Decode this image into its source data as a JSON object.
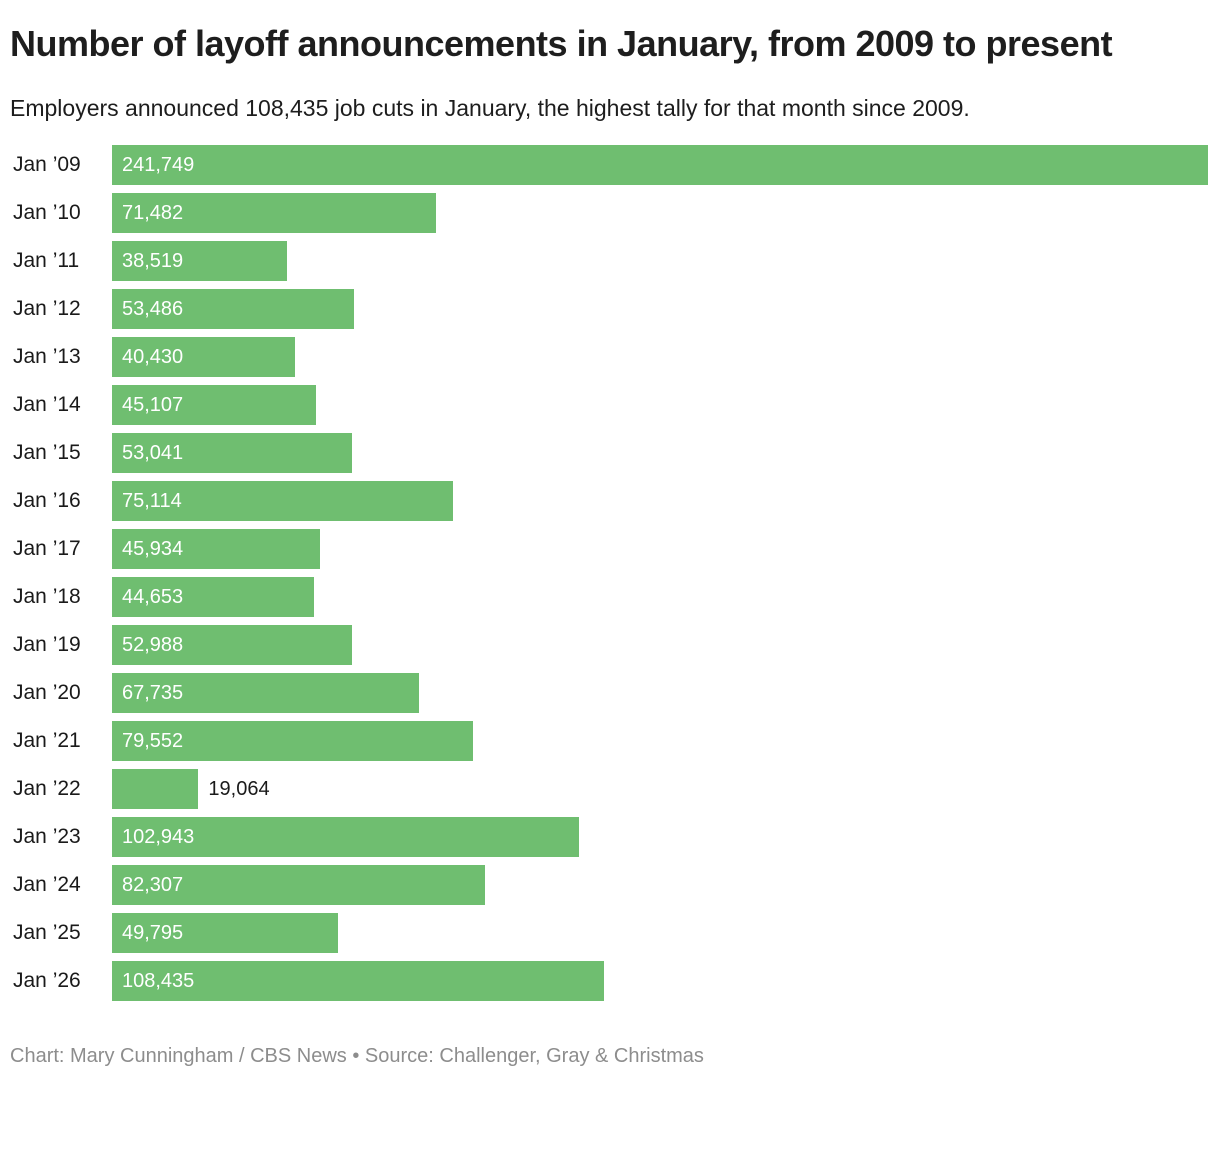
{
  "header": {
    "title": "Number of layoff announcements in January, from 2009 to present",
    "subtitle": "Employers announced 108,435 job cuts in January, the highest tally for that month since 2009."
  },
  "chart_data": {
    "type": "bar",
    "orientation": "horizontal",
    "title": "Number of layoff announcements in January, from 2009 to present",
    "subtitle": "Employers announced 108,435 job cuts in January, the highest tally for that month since 2009.",
    "categories": [
      "Jan ’09",
      "Jan ’10",
      "Jan ’11",
      "Jan ’12",
      "Jan ’13",
      "Jan ’14",
      "Jan ’15",
      "Jan ’16",
      "Jan ’17",
      "Jan ’18",
      "Jan ’19",
      "Jan ’20",
      "Jan ’21",
      "Jan ’22",
      "Jan ’23",
      "Jan ’24",
      "Jan ’25",
      "Jan ’26"
    ],
    "values": [
      241749,
      71482,
      38519,
      53486,
      40430,
      45107,
      53041,
      75114,
      45934,
      44653,
      52988,
      67735,
      79552,
      19064,
      102943,
      82307,
      49795,
      108435
    ],
    "value_labels": [
      "241,749",
      "71,482",
      "38,519",
      "53,486",
      "40,430",
      "45,107",
      "53,041",
      "75,114",
      "45,934",
      "44,653",
      "52,988",
      "67,735",
      "79,552",
      "19,064",
      "102,943",
      "82,307",
      "49,795",
      "108,435"
    ],
    "xlim": [
      0,
      241749
    ],
    "grid": false,
    "legend": false,
    "bar_color": "#6fbe70",
    "label_color_inside": "#ffffff",
    "label_color_outside": "#1a1a1a"
  },
  "footer": {
    "credit": "Chart: Mary Cunningham / CBS News • Source: Challenger, Gray & Christmas"
  }
}
